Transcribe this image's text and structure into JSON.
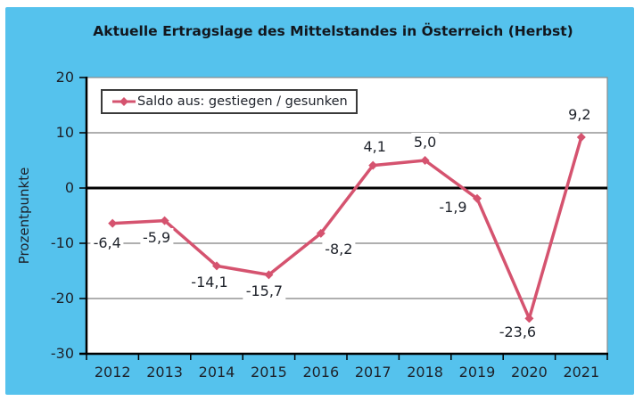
{
  "header": {
    "title": "Aktuelle Ertragslage des Mittelstandes in Österreich (Herbst)"
  },
  "colors": {
    "background": "#55c2ed",
    "plot_background": "#ffffff",
    "series_line": "#d5536f",
    "gridline": "#7f7f7f",
    "axis": "#000000",
    "text": "#1e222a"
  },
  "chart_data": {
    "type": "line",
    "title": "Aktuelle Ertragslage des Mittelstandes in Österreich (Herbst)",
    "xlabel": "",
    "ylabel": "Prozentpunkte",
    "categories": [
      "2012",
      "2013",
      "2014",
      "2015",
      "2016",
      "2017",
      "2018",
      "2019",
      "2020",
      "2021"
    ],
    "series": [
      {
        "name": "Saldo aus: gestiegen / gesunken",
        "values": [
          -6.4,
          -5.9,
          -14.1,
          -15.7,
          -8.2,
          4.1,
          5.0,
          -1.9,
          -23.6,
          9.2
        ],
        "point_labels": [
          "-6,4",
          "-5,9",
          "-14,1",
          "-15,7",
          "-8,2",
          "4,1",
          "5,0",
          "-1,9",
          "-23,6",
          "9,2"
        ],
        "color": "#d5536f",
        "marker": "diamond"
      }
    ],
    "ylim": [
      -30,
      20
    ],
    "yticks": [
      20,
      10,
      0,
      -10,
      -20,
      -30
    ],
    "grid": true,
    "zero_line": true,
    "legend_position": "top-left"
  }
}
